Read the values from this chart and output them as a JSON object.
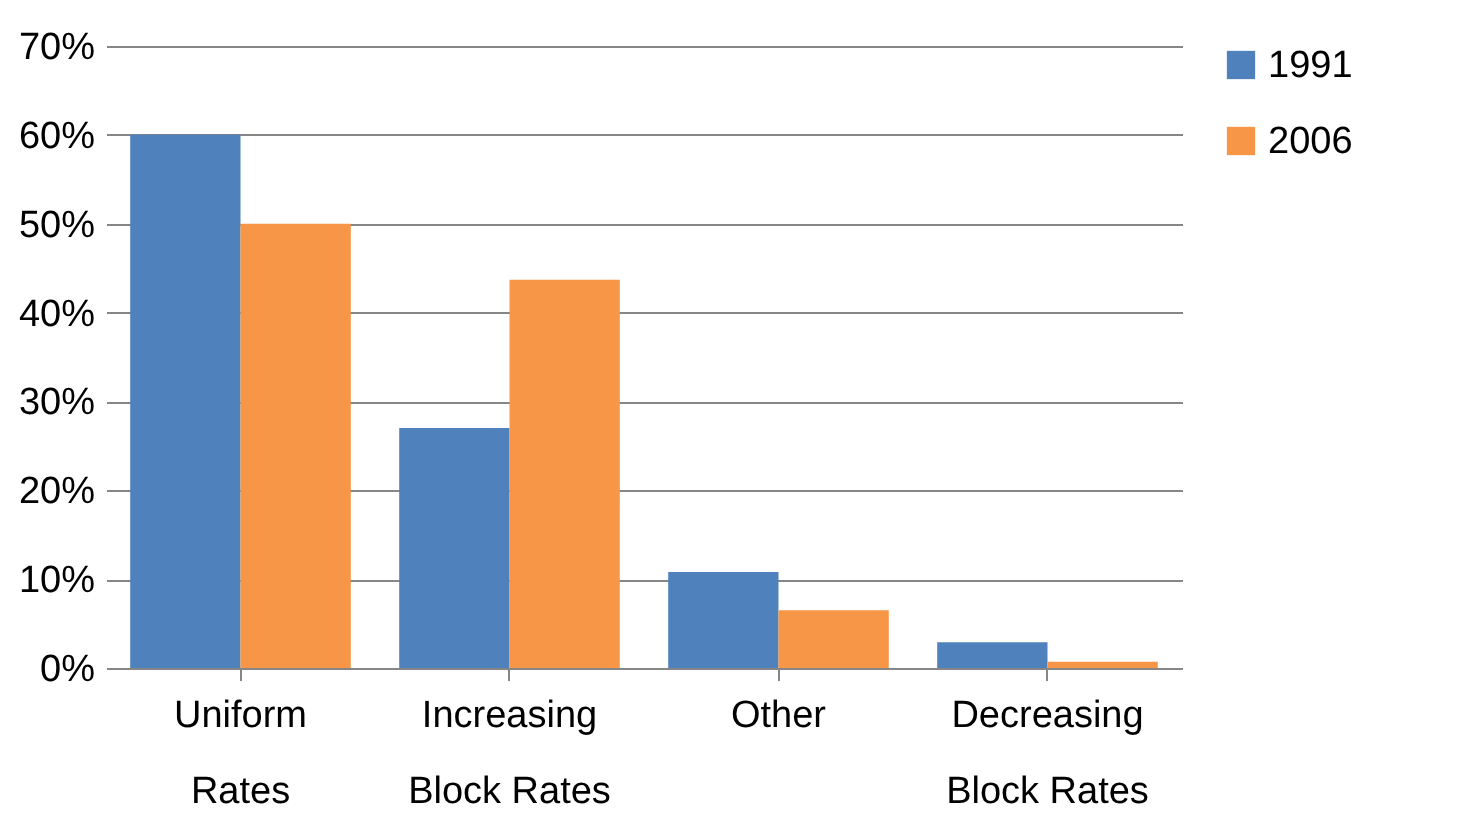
{
  "chart_data": {
    "type": "bar",
    "categories": [
      "Uniform Rates",
      "Increasing Block Rates",
      "Other",
      "Decreasing Block Rates"
    ],
    "series": [
      {
        "name": "1991",
        "color": "#4f81bd",
        "values": [
          60,
          27,
          10.8,
          2.9
        ]
      },
      {
        "name": "2006",
        "color": "#f79646",
        "values": [
          50,
          43.7,
          6.5,
          0.7
        ]
      }
    ],
    "ylim": [
      0,
      70
    ],
    "yticks": [
      {
        "value": 0,
        "label": "0%"
      },
      {
        "value": 10,
        "label": "10%"
      },
      {
        "value": 20,
        "label": "20%"
      },
      {
        "value": 30,
        "label": "30%"
      },
      {
        "value": 40,
        "label": "40%"
      },
      {
        "value": 50,
        "label": "50%"
      },
      {
        "value": 60,
        "label": "60%"
      },
      {
        "value": 70,
        "label": "70%"
      }
    ],
    "grid": "y",
    "legend": "right"
  }
}
